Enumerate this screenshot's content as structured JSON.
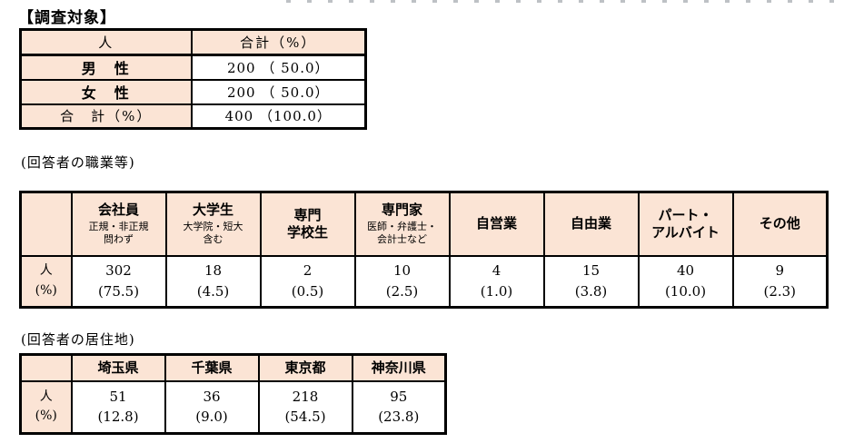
{
  "titles": {
    "survey_target": "【調査対象】",
    "occupation_caption": "(回答者の職業等)",
    "residence_caption": "(回答者の居住地)"
  },
  "colors": {
    "header_fill": "#fbe4d5",
    "border": "#000000"
  },
  "survey_target": {
    "header": [
      "人",
      "合計（%）"
    ],
    "rows": [
      {
        "label": "男　性",
        "value": "200 （ 50.0）"
      },
      {
        "label": "女　性",
        "value": "200 （ 50.0）"
      },
      {
        "label": "合　計（%）",
        "value": "400 （100.0）"
      }
    ]
  },
  "occupation": {
    "row_label": "人\n(%)",
    "columns": [
      {
        "title": "会社員",
        "subtitle": "正規・非正規\n問わず",
        "count": "302",
        "pct": "(75.5)"
      },
      {
        "title": "大学生",
        "subtitle": "大学院・短大\n含む",
        "count": "18",
        "pct": "(4.5)"
      },
      {
        "title": "専門\n学校生",
        "subtitle": "",
        "count": "2",
        "pct": "(0.5)"
      },
      {
        "title": "専門家",
        "subtitle": "医師・弁護士・\n会計士など",
        "count": "10",
        "pct": "(2.5)"
      },
      {
        "title": "自営業",
        "subtitle": "",
        "count": "4",
        "pct": "(1.0)"
      },
      {
        "title": "自由業",
        "subtitle": "",
        "count": "15",
        "pct": "(3.8)"
      },
      {
        "title": "パート・\nアルバイト",
        "subtitle": "",
        "count": "40",
        "pct": "(10.0)"
      },
      {
        "title": "その他",
        "subtitle": "",
        "count": "9",
        "pct": "(2.3)"
      }
    ]
  },
  "residence": {
    "row_label": "人\n(%)",
    "columns": [
      {
        "title": "埼玉県",
        "count": "51",
        "pct": "(12.8)"
      },
      {
        "title": "千葉県",
        "count": "36",
        "pct": "(9.0)"
      },
      {
        "title": "東京都",
        "count": "218",
        "pct": "(54.5)"
      },
      {
        "title": "神奈川県",
        "count": "95",
        "pct": "(23.8)"
      }
    ]
  }
}
